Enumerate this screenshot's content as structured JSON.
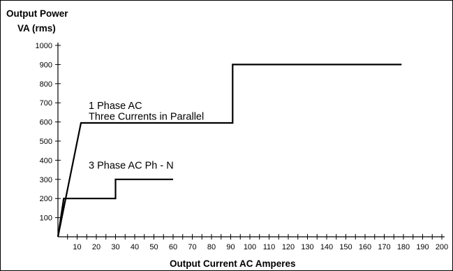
{
  "chart_data": {
    "type": "line",
    "title": "",
    "ylabel_lines": [
      "Output Power",
      "VA (rms)"
    ],
    "xlabel": "Output Current AC Amperes",
    "xlim": [
      0,
      200
    ],
    "ylim": [
      0,
      1000
    ],
    "x_ticks": [
      10,
      20,
      30,
      40,
      50,
      60,
      70,
      80,
      90,
      100,
      110,
      120,
      130,
      140,
      150,
      160,
      170,
      180,
      190,
      200
    ],
    "y_ticks": [
      100,
      200,
      300,
      400,
      500,
      600,
      700,
      800,
      900,
      1000
    ],
    "grid": false,
    "series": [
      {
        "x": [
          0,
          12,
          91,
          91,
          179
        ],
        "y": [
          0,
          595,
          595,
          900,
          900
        ]
      },
      {
        "x": [
          0,
          3,
          30,
          30,
          60
        ],
        "y": [
          0,
          200,
          200,
          300,
          300
        ]
      }
    ],
    "annotations": [
      {
        "text": "1 Phase AC",
        "x": 16,
        "y": 668
      },
      {
        "text": "Three Currents in Parallel",
        "x": 16,
        "y": 612
      },
      {
        "text": "3 Phase AC Ph - N",
        "x": 16,
        "y": 355
      }
    ],
    "line_color": "#000000"
  }
}
